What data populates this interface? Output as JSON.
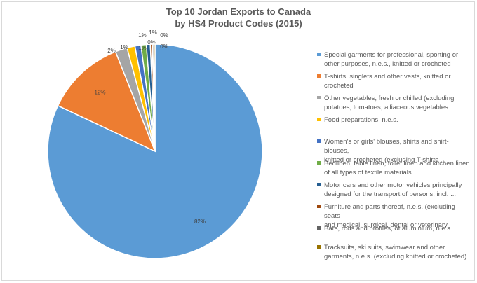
{
  "chart_data": {
    "type": "pie",
    "title": [
      "Top 10 Jordan Exports to Canada",
      "by HS4 Product Codes (2015)"
    ],
    "slices": [
      {
        "label": "Special garments for professional, sporting or other purposes, n.e.s., knitted or crocheted",
        "legend": [
          "Special garments for professional, sporting or",
          "other purposes, n.e.s., knitted or crocheted"
        ],
        "value": 82,
        "pct_label": "82%",
        "color": "#5b9bd5"
      },
      {
        "label": "T-shirts, singlets and other vests, knitted or crocheted",
        "legend": [
          "T-shirts, singlets and other vests, knitted or",
          "crocheted"
        ],
        "value": 12,
        "pct_label": "12%",
        "color": "#ed7d31"
      },
      {
        "label": "Other vegetables, fresh or chilled (excluding potatoes, tomatoes, alliaceous vegetables",
        "legend": [
          "Other vegetables, fresh or chilled (excluding",
          "potatoes, tomatoes, alliaceous vegetables"
        ],
        "value": 1.8,
        "pct_label": "2%",
        "color": "#a5a5a5"
      },
      {
        "label": "Food preparations, n.e.s.",
        "legend": [
          "Food preparations, n.e.s."
        ],
        "value": 1.2,
        "pct_label": "1%",
        "color": "#ffc000"
      },
      {
        "label": "Women's or girls' blouses, shirts and shirt-blouses, knitted or crocheted (excluding T-shirts ...",
        "legend": [
          "Women's or girls' blouses, shirts and shirt-blouses,",
          "knitted or crocheted (excluding T-shirts ..."
        ],
        "value": 0.9,
        "pct_label": "1%",
        "color": "#4472c4"
      },
      {
        "label": "Bedlinen, table linen, toilet linen and kitchen linen of all types of textile materials",
        "legend": [
          "Bedlinen, table linen, toilet linen and kitchen linen",
          "of all types of textile materials"
        ],
        "value": 0.8,
        "pct_label": "1%",
        "color": "#70ad47"
      },
      {
        "label": "Motor cars and other motor vehicles principally designed for the transport of persons, incl. ...",
        "legend": [
          "Motor cars and other motor vehicles principally",
          "designed for the transport of persons, incl. ..."
        ],
        "value": 0.6,
        "pct_label": "1%",
        "color": "#255e91"
      },
      {
        "label": "Furniture and parts thereof, n.e.s. (excluding seats and medical, surgical, dental or veterinary",
        "legend": [
          "Furniture and parts thereof, n.e.s. (excluding seats",
          "and medical, surgical, dental or veterinary"
        ],
        "value": 0.3,
        "pct_label": "0%",
        "color": "#9e480e"
      },
      {
        "label": "Bars, rods and profiles, of aluminium, n.e.s.",
        "legend": [
          "Bars, rods and profiles, of aluminium, n.e.s."
        ],
        "value": 0.2,
        "pct_label": "0%",
        "color": "#636363"
      },
      {
        "label": "Tracksuits, ski suits, swimwear and other garments, n.e.s. (excluding knitted or crocheted)",
        "legend": [
          "Tracksuits, ski suits, swimwear and other",
          "garments, n.e.s. (excluding knitted or crocheted)"
        ],
        "value": 0.2,
        "pct_label": "0%",
        "color": "#997300"
      }
    ],
    "legend_position": "right",
    "start_angle_deg": 0,
    "direction": "clockwise"
  }
}
